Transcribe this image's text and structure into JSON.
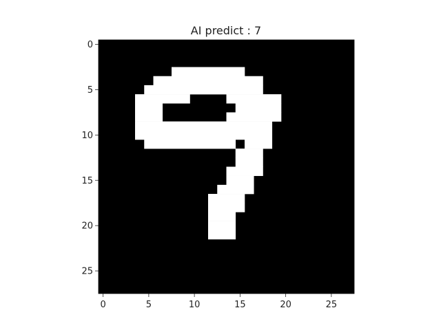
{
  "chart_data": {
    "type": "heatmap",
    "title": "AI predict : 7",
    "xlabel": "",
    "ylabel": "",
    "xlim": [
      -0.5,
      27.5
    ],
    "ylim": [
      27.5,
      -0.5
    ],
    "xticks": [
      0,
      5,
      10,
      15,
      20,
      25
    ],
    "yticks": [
      0,
      5,
      10,
      15,
      20,
      25
    ],
    "grid": false,
    "colormap": "gray",
    "colors": {
      "on": "#ffffff",
      "off": "#000000",
      "text": "#222222"
    },
    "grid_size": [
      28,
      28
    ],
    "white_runs": [
      {
        "row": 3,
        "x": [
          8,
          15
        ]
      },
      {
        "row": 4,
        "x": [
          6,
          17
        ]
      },
      {
        "row": 5,
        "x": [
          5,
          17
        ]
      },
      {
        "row": 6,
        "x": [
          4,
          9
        ]
      },
      {
        "row": 6,
        "x": [
          14,
          19
        ]
      },
      {
        "row": 7,
        "x": [
          4,
          6
        ]
      },
      {
        "row": 7,
        "x": [
          15,
          19
        ]
      },
      {
        "row": 8,
        "x": [
          4,
          6
        ]
      },
      {
        "row": 8,
        "x": [
          14,
          19
        ]
      },
      {
        "row": 9,
        "x": [
          4,
          18
        ]
      },
      {
        "row": 10,
        "x": [
          4,
          18
        ]
      },
      {
        "row": 11,
        "x": [
          5,
          14
        ]
      },
      {
        "row": 11,
        "x": [
          16,
          18
        ]
      },
      {
        "row": 12,
        "x": [
          15,
          17
        ]
      },
      {
        "row": 13,
        "x": [
          15,
          17
        ]
      },
      {
        "row": 14,
        "x": [
          14,
          17
        ]
      },
      {
        "row": 15,
        "x": [
          14,
          16
        ]
      },
      {
        "row": 16,
        "x": [
          13,
          16
        ]
      },
      {
        "row": 17,
        "x": [
          12,
          15
        ]
      },
      {
        "row": 18,
        "x": [
          12,
          15
        ]
      },
      {
        "row": 19,
        "x": [
          12,
          14
        ]
      },
      {
        "row": 20,
        "x": [
          12,
          14
        ]
      },
      {
        "row": 21,
        "x": [
          12,
          14
        ]
      }
    ]
  }
}
